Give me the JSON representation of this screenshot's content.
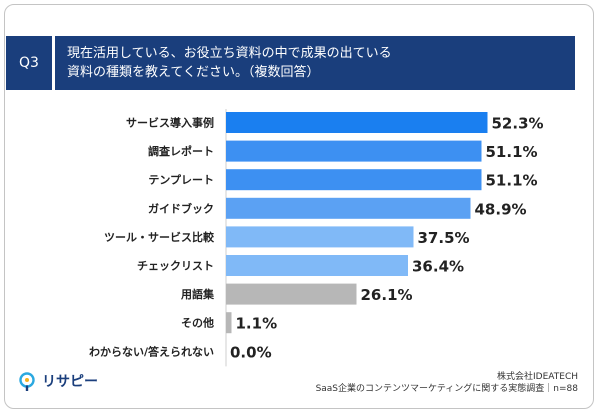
{
  "question": {
    "badge": "Q3",
    "line1": "現在活用している、お役立ち資料の中で成果の出ている",
    "line2": "資料の種類を教えてください。（複数回答）"
  },
  "chart_data": {
    "type": "bar",
    "orientation": "horizontal",
    "categories": [
      "サービス導入事例",
      "調査レポート",
      "テンプレート",
      "ガイドブック",
      "ツール・サービス比較",
      "チェックリスト",
      "用語集",
      "その他",
      "わからない/答えられない"
    ],
    "values": [
      52.3,
      51.1,
      51.1,
      48.9,
      37.5,
      36.4,
      26.1,
      1.1,
      0.0
    ],
    "value_labels": [
      "52.3%",
      "51.1%",
      "51.1%",
      "48.9%",
      "37.5%",
      "36.4%",
      "26.1%",
      "1.1%",
      "0.0%"
    ],
    "colors": [
      "#1a7ff0",
      "#3d90f2",
      "#3d90f2",
      "#5ba1f3",
      "#80b9f7",
      "#80b9f7",
      "#b7b7b7",
      "#b7b7b7",
      "#b7b7b7"
    ],
    "xlim": [
      0,
      60
    ],
    "grid": false
  },
  "logo": {
    "name": "リサピー"
  },
  "source": {
    "line1": "株式会社IDEATECH",
    "line2": "SaaS企業のコンテンツマーケティングに関する実態調査｜n=88"
  }
}
